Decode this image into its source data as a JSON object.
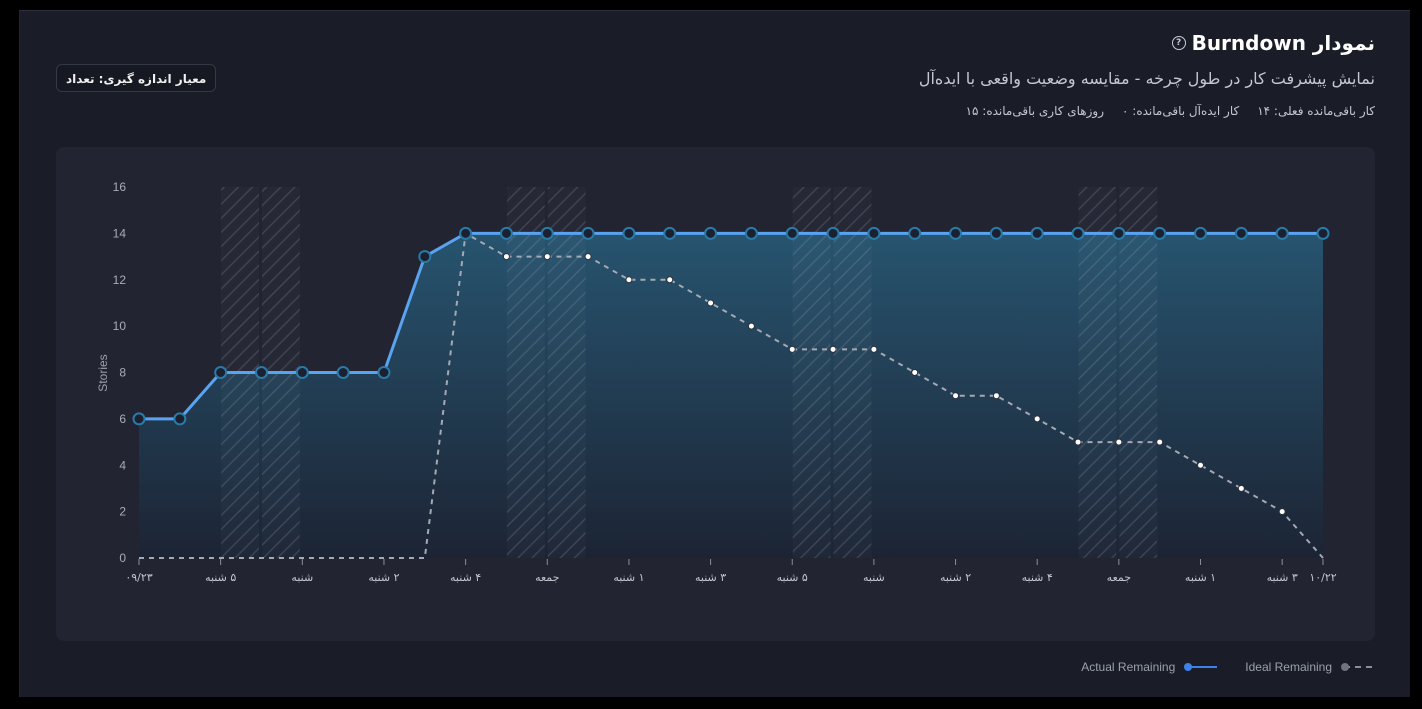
{
  "header": {
    "title": "نمودار Burndown",
    "help_icon": "question-circle-icon",
    "subtitle": "نمایش پیشرفت کار در طول چرخه - مقایسه وضعیت واقعی با ایده‌آل",
    "stats": [
      {
        "label": "کار باقی‌مانده فعلی: ۱۴"
      },
      {
        "label": "کار ایده‌آل باقی‌مانده: ۰"
      },
      {
        "label": "روزهای کاری باقی‌مانده: ۱۵"
      }
    ]
  },
  "measure_button": {
    "label": "معیار اندازه گیری: تعداد"
  },
  "colors": {
    "actual": "#5aa3f0",
    "actual_marker_stroke": "#2a7aa8",
    "ideal": "#a5a9b3",
    "panel_bg": "#222531",
    "card_bg": "#1a1d27"
  },
  "legend": {
    "actual_label": "Actual Remaining",
    "ideal_label": "Ideal Remaining"
  },
  "chart_data": {
    "type": "line",
    "title": "نمودار Burndown",
    "xlabel": "",
    "ylabel": "Stories",
    "ylim": [
      0,
      16
    ],
    "yticks": [
      0,
      2,
      4,
      6,
      8,
      10,
      12,
      14,
      16
    ],
    "grid": false,
    "legend_position": "bottom-right",
    "x_count": 30,
    "x_tick_labels": [
      {
        "index": 0,
        "label": "۰۹/۲۳"
      },
      {
        "index": 2,
        "label": "۵ شنبه"
      },
      {
        "index": 4,
        "label": "شنبه"
      },
      {
        "index": 6,
        "label": "۲ شنبه"
      },
      {
        "index": 8,
        "label": "۴ شنبه"
      },
      {
        "index": 10,
        "label": "جمعه"
      },
      {
        "index": 12,
        "label": "۱ شنبه"
      },
      {
        "index": 14,
        "label": "۳ شنبه"
      },
      {
        "index": 16,
        "label": "۵ شنبه"
      },
      {
        "index": 18,
        "label": "شنبه"
      },
      {
        "index": 20,
        "label": "۲ شنبه"
      },
      {
        "index": 22,
        "label": "۴ شنبه"
      },
      {
        "index": 24,
        "label": "جمعه"
      },
      {
        "index": 26,
        "label": "۱ شنبه"
      },
      {
        "index": 28,
        "label": "۳ شنبه"
      },
      {
        "index": 29,
        "label": "۱۰/۲۲"
      }
    ],
    "weekend_indices": [
      2,
      3,
      9,
      10,
      16,
      17,
      23,
      24
    ],
    "series": [
      {
        "name": "Actual Remaining",
        "style": "solid",
        "values": [
          6,
          6,
          8,
          8,
          8,
          8,
          8,
          13,
          14,
          14,
          14,
          14,
          14,
          14,
          14,
          14,
          14,
          14,
          14,
          14,
          14,
          14,
          14,
          14,
          14,
          14,
          14,
          14,
          14,
          14
        ]
      },
      {
        "name": "Ideal Remaining",
        "style": "dashed",
        "values": [
          0,
          0,
          0,
          0,
          0,
          0,
          0,
          0,
          14,
          13,
          13,
          13,
          12,
          12,
          11,
          10,
          9,
          9,
          9,
          8,
          7,
          7,
          6,
          5,
          5,
          5,
          4,
          3,
          2,
          0
        ]
      }
    ]
  }
}
